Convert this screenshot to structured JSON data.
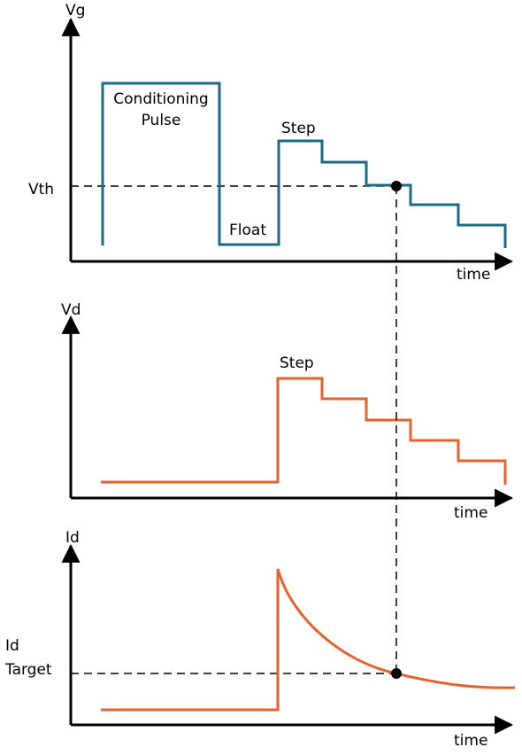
{
  "panels": {
    "vg": {
      "axis_label": "Vg",
      "time_label": "time",
      "threshold_label": "Vth",
      "annotations": {
        "conditioning_line1": "Conditioning",
        "conditioning_line2": "Pulse",
        "float": "Float",
        "step": "Step"
      }
    },
    "vd": {
      "axis_label": "Vd",
      "time_label": "time",
      "annotations": {
        "step": "Step"
      }
    },
    "id": {
      "axis_label": "Id",
      "time_label": "time",
      "target_label_line1": "Id",
      "target_label_line2": "Target"
    }
  },
  "colors": {
    "vg_trace": "#1a6b85",
    "vd_trace": "#e8602c",
    "id_trace": "#e8602c",
    "axes": "#000000",
    "guide": "#000000"
  },
  "icons": [
    "arrow-right-icon",
    "arrow-up-icon",
    "intersection-marker-icon"
  ]
}
